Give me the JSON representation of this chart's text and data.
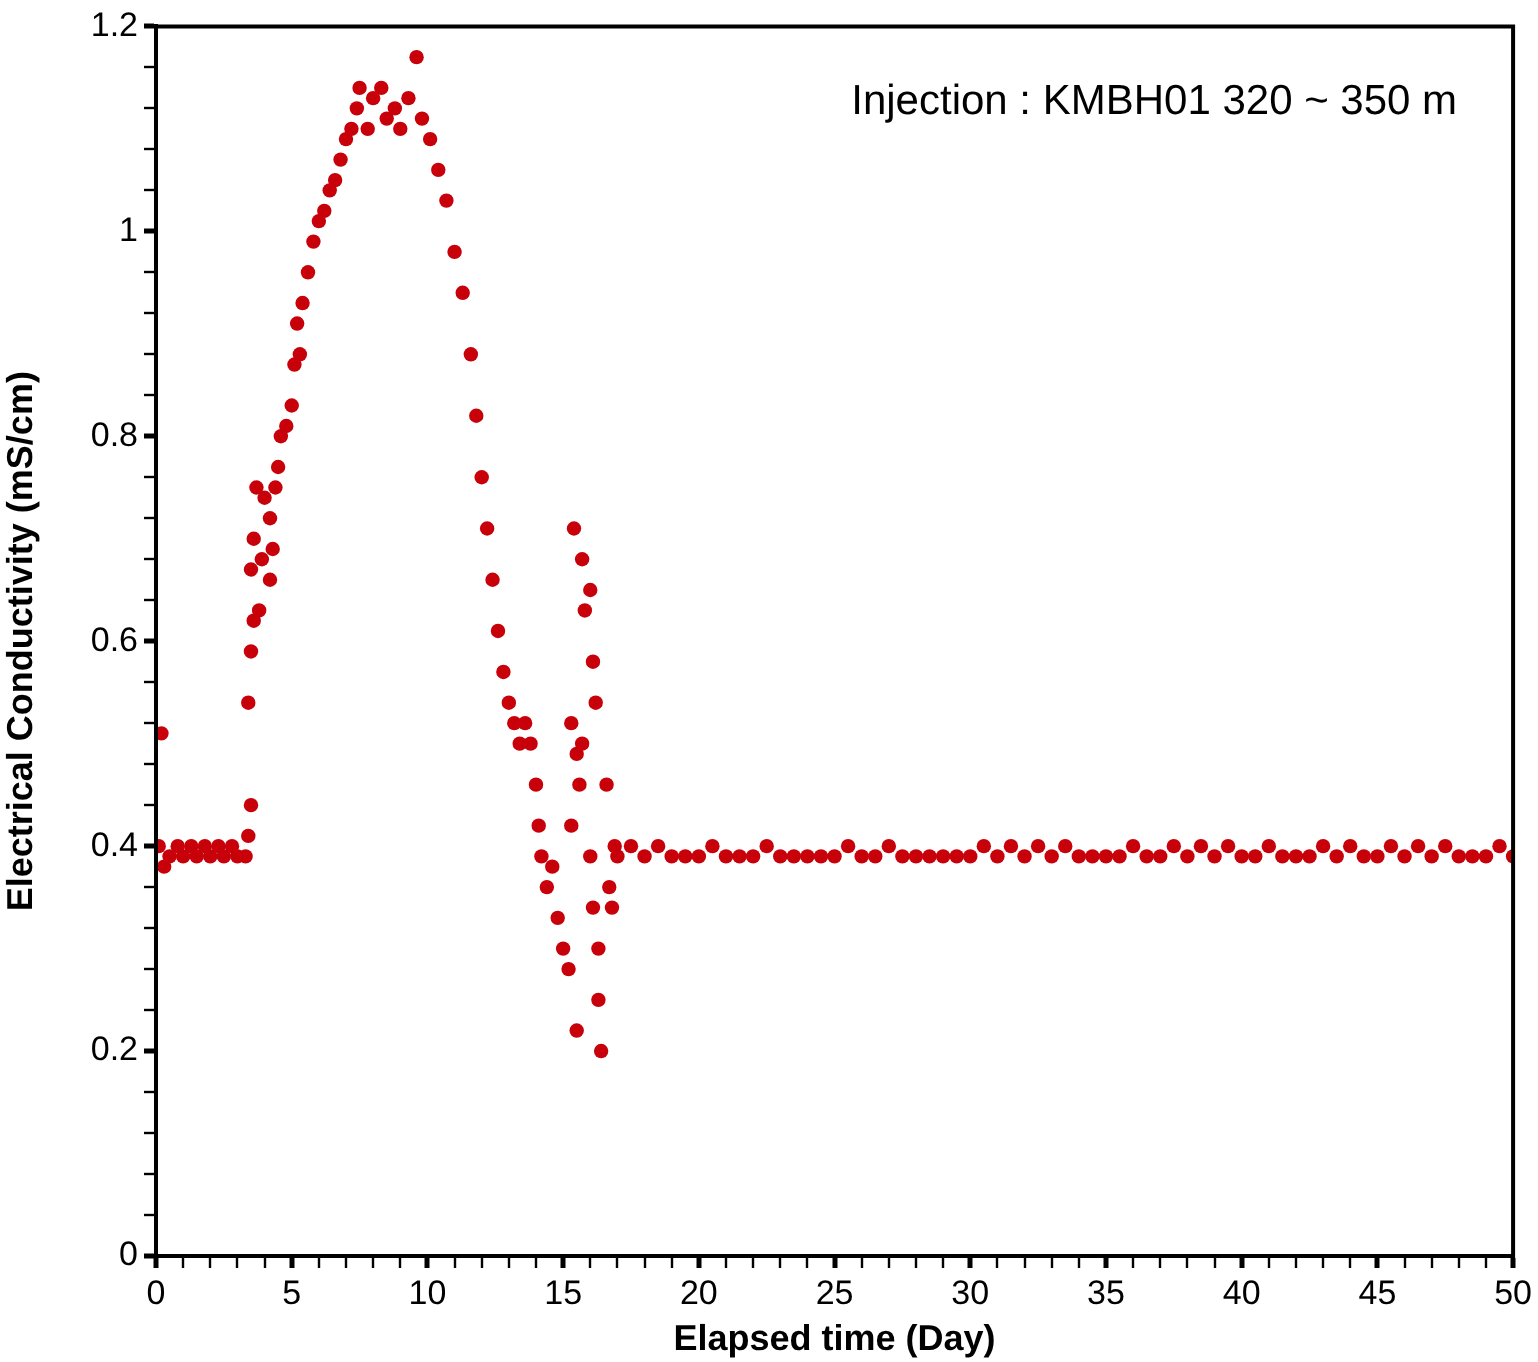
{
  "chart_data": {
    "type": "scatter",
    "xlabel": "Elapsed time (Day)",
    "ylabel": "Electrical Conductivity (mS/cm)",
    "annotations": [
      "Injection : KMBH01 320 ~ 350 m"
    ],
    "xlim": [
      0,
      50
    ],
    "ylim": [
      0,
      1.2
    ],
    "xticks": [
      0,
      {
        "value": 1,
        "label": null
      },
      {
        "value": 2,
        "label": null
      },
      {
        "value": 3,
        "label": null
      },
      {
        "value": 4,
        "label": null
      },
      5,
      {
        "value": 6,
        "label": null
      },
      {
        "value": 7,
        "label": null
      },
      {
        "value": 8,
        "label": null
      },
      {
        "value": 9,
        "label": null
      },
      10,
      {
        "value": 11,
        "label": null
      },
      {
        "value": 12,
        "label": null
      },
      {
        "value": 13,
        "label": null
      },
      {
        "value": 14,
        "label": null
      },
      15,
      {
        "value": 16,
        "label": null
      },
      {
        "value": 17,
        "label": null
      },
      {
        "value": 18,
        "label": null
      },
      {
        "value": 19,
        "label": null
      },
      20,
      {
        "value": 21,
        "label": null
      },
      {
        "value": 22,
        "label": null
      },
      {
        "value": 23,
        "label": null
      },
      {
        "value": 24,
        "label": null
      },
      25,
      {
        "value": 26,
        "label": null
      },
      {
        "value": 27,
        "label": null
      },
      {
        "value": 28,
        "label": null
      },
      {
        "value": 29,
        "label": null
      },
      30,
      {
        "value": 31,
        "label": null
      },
      {
        "value": 32,
        "label": null
      },
      {
        "value": 33,
        "label": null
      },
      {
        "value": 34,
        "label": null
      },
      35,
      {
        "value": 36,
        "label": null
      },
      {
        "value": 37,
        "label": null
      },
      {
        "value": 38,
        "label": null
      },
      {
        "value": 39,
        "label": null
      },
      40,
      {
        "value": 41,
        "label": null
      },
      {
        "value": 42,
        "label": null
      },
      {
        "value": 43,
        "label": null
      },
      {
        "value": 44,
        "label": null
      },
      45,
      {
        "value": 46,
        "label": null
      },
      {
        "value": 47,
        "label": null
      },
      {
        "value": 48,
        "label": null
      },
      {
        "value": 49,
        "label": null
      },
      50
    ],
    "yticks": [
      0,
      {
        "value": 0.04,
        "label": null
      },
      {
        "value": 0.08,
        "label": null
      },
      {
        "value": 0.12,
        "label": null
      },
      {
        "value": 0.16,
        "label": null
      },
      0.2,
      {
        "value": 0.24,
        "label": null
      },
      {
        "value": 0.28,
        "label": null
      },
      {
        "value": 0.32,
        "label": null
      },
      {
        "value": 0.36,
        "label": null
      },
      0.4,
      {
        "value": 0.44,
        "label": null
      },
      {
        "value": 0.48,
        "label": null
      },
      {
        "value": 0.52,
        "label": null
      },
      {
        "value": 0.56,
        "label": null
      },
      0.6,
      {
        "value": 0.64,
        "label": null
      },
      {
        "value": 0.68,
        "label": null
      },
      {
        "value": 0.72,
        "label": null
      },
      {
        "value": 0.76,
        "label": null
      },
      0.8,
      {
        "value": 0.84,
        "label": null
      },
      {
        "value": 0.88,
        "label": null
      },
      {
        "value": 0.92,
        "label": null
      },
      {
        "value": 0.96,
        "label": null
      },
      1,
      {
        "value": 1.04,
        "label": null
      },
      {
        "value": 1.08,
        "label": null
      },
      {
        "value": 1.12,
        "label": null
      },
      {
        "value": 1.16,
        "label": null
      },
      1.2
    ],
    "grid": false,
    "legend": false,
    "marker": "circle",
    "series": [
      {
        "color": "#c8000a",
        "x": [
          0.1,
          0.2,
          0.3,
          0.5,
          0.8,
          1,
          1.3,
          1.5,
          1.8,
          2,
          2.3,
          2.5,
          2.8,
          3,
          3.3,
          3.4,
          3.5,
          3.4,
          3.5,
          3.6,
          3.5,
          3.6,
          3.7,
          3.8,
          3.9,
          4.0,
          4.2,
          4.3,
          4.2,
          4.4,
          4.5,
          4.6,
          4.8,
          5.0,
          5.1,
          5.3,
          5.2,
          5.4,
          5.6,
          5.8,
          6.0,
          6.2,
          6.4,
          6.6,
          6.8,
          7.0,
          7.2,
          7.4,
          7.5,
          7.8,
          8.0,
          8.3,
          8.5,
          8.8,
          9.0,
          9.3,
          9.6,
          9.8,
          10.1,
          10.4,
          10.7,
          11.0,
          11.3,
          11.6,
          11.8,
          12.0,
          12.2,
          12.4,
          12.6,
          12.8,
          13.0,
          13.2,
          13.4,
          13.6,
          13.8,
          14.0,
          14.1,
          14.2,
          14.4,
          14.6,
          14.8,
          15.0,
          15.2,
          15.5,
          15.3,
          15.5,
          15.3,
          15.7,
          15.6,
          15.4,
          15.7,
          15.8,
          16.0,
          16.1,
          16.2,
          16.0,
          16.1,
          16.3,
          16.4,
          16.3,
          16.6,
          16.7,
          16.8,
          16.9,
          17,
          17.5,
          18,
          18.5,
          19,
          19.5,
          20,
          20.5,
          21,
          21.5,
          22,
          22.5,
          23,
          23.5,
          24,
          24.5,
          25,
          25.5,
          26,
          26.5,
          27,
          27.5,
          28,
          28.5,
          29,
          29.5,
          30,
          30.5,
          31,
          31.5,
          32,
          32.5,
          33,
          33.5,
          34,
          34.5,
          35,
          35.5,
          36,
          36.5,
          37,
          37.5,
          38,
          38.5,
          39,
          39.5,
          40,
          40.5,
          41,
          41.5,
          42,
          42.5,
          43,
          43.5,
          44,
          44.5,
          45,
          45.5,
          46,
          46.5,
          47,
          47.5,
          48,
          48.5,
          49,
          49.5,
          50
        ],
        "values": [
          0.4,
          0.51,
          0.38,
          0.39,
          0.4,
          0.39,
          0.4,
          0.39,
          0.4,
          0.39,
          0.4,
          0.39,
          0.4,
          0.39,
          0.39,
          0.41,
          0.44,
          0.54,
          0.59,
          0.62,
          0.67,
          0.7,
          0.75,
          0.63,
          0.68,
          0.74,
          0.66,
          0.69,
          0.72,
          0.75,
          0.77,
          0.8,
          0.81,
          0.83,
          0.87,
          0.88,
          0.91,
          0.93,
          0.96,
          0.99,
          1.01,
          1.02,
          1.04,
          1.05,
          1.07,
          1.09,
          1.1,
          1.12,
          1.14,
          1.1,
          1.13,
          1.14,
          1.11,
          1.12,
          1.1,
          1.13,
          1.17,
          1.11,
          1.09,
          1.06,
          1.03,
          0.98,
          0.94,
          0.88,
          0.82,
          0.76,
          0.71,
          0.66,
          0.61,
          0.57,
          0.54,
          0.52,
          0.5,
          0.52,
          0.5,
          0.46,
          0.42,
          0.39,
          0.36,
          0.38,
          0.33,
          0.3,
          0.28,
          0.22,
          0.42,
          0.49,
          0.52,
          0.5,
          0.46,
          0.71,
          0.68,
          0.63,
          0.65,
          0.58,
          0.54,
          0.39,
          0.34,
          0.25,
          0.2,
          0.3,
          0.46,
          0.36,
          0.34,
          0.4,
          0.39,
          0.4,
          0.39,
          0.4,
          0.39,
          0.39,
          0.39,
          0.4,
          0.39,
          0.39,
          0.39,
          0.4,
          0.39,
          0.39,
          0.39,
          0.39,
          0.39,
          0.4,
          0.39,
          0.39,
          0.4,
          0.39,
          0.39,
          0.39,
          0.39,
          0.39,
          0.39,
          0.4,
          0.39,
          0.4,
          0.39,
          0.4,
          0.39,
          0.4,
          0.39,
          0.39,
          0.39,
          0.39,
          0.4,
          0.39,
          0.39,
          0.4,
          0.39,
          0.4,
          0.39,
          0.4,
          0.39,
          0.39,
          0.4,
          0.39,
          0.39,
          0.39,
          0.4,
          0.39,
          0.4,
          0.39,
          0.39,
          0.4,
          0.39,
          0.4,
          0.39,
          0.4,
          0.39,
          0.39,
          0.39,
          0.4,
          0.39
        ]
      }
    ]
  }
}
